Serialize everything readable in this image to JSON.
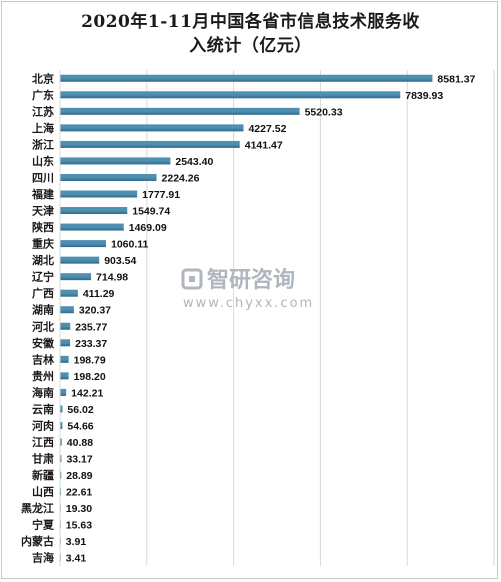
{
  "chart_data": {
    "type": "bar",
    "orientation": "horizontal",
    "title": "2020年1-11月中国各省市信息技术服务收入统计（亿元）",
    "title_lines": [
      "2020年1-11月中国各省市信息技术服务收",
      "入统计（亿元）"
    ],
    "categories": [
      "北京",
      "广东",
      "江苏",
      "上海",
      "浙江",
      "山东",
      "四川",
      "福建",
      "天津",
      "陕西",
      "重庆",
      "湖北",
      "辽宁",
      "广西",
      "湖南",
      "河北",
      "安徽",
      "吉林",
      "贵州",
      "海南",
      "云南",
      "河肉",
      "江西",
      "甘肃",
      "新疆",
      "山西",
      "黑龙江",
      "宁夏",
      "内蒙古",
      "吉海"
    ],
    "values": [
      8581.37,
      7839.93,
      5520.33,
      4227.52,
      4141.47,
      2543.4,
      2224.26,
      1777.91,
      1549.74,
      1469.09,
      1060.11,
      903.54,
      714.98,
      411.29,
      320.37,
      235.77,
      233.37,
      198.79,
      198.2,
      142.21,
      56.02,
      54.66,
      40.88,
      33.17,
      28.89,
      22.61,
      19.3,
      15.63,
      3.91,
      3.41
    ],
    "value_labels": [
      "8581.37",
      "7839.93",
      "5520.33",
      "4227.52",
      "4141.47",
      "2543.40",
      "2224.26",
      "1777.91",
      "1549.74",
      "1469.09",
      "1060.11",
      "903.54",
      "714.98",
      "411.29",
      "320.37",
      "235.77",
      "233.37",
      "198.79",
      "198.20",
      "142.21",
      "56.02",
      "54.66",
      "40.88",
      "33.17",
      "28.89",
      "22.61",
      "19.30",
      "15.63",
      "3.91",
      "3.41"
    ],
    "xlim": [
      0,
      10000
    ],
    "grid": true,
    "bar_color": "#4f8fb0",
    "bar_color_dark": "#2f6a8c"
  },
  "watermark": {
    "brand": "智研咨询",
    "url": "www.chyxx.com"
  }
}
